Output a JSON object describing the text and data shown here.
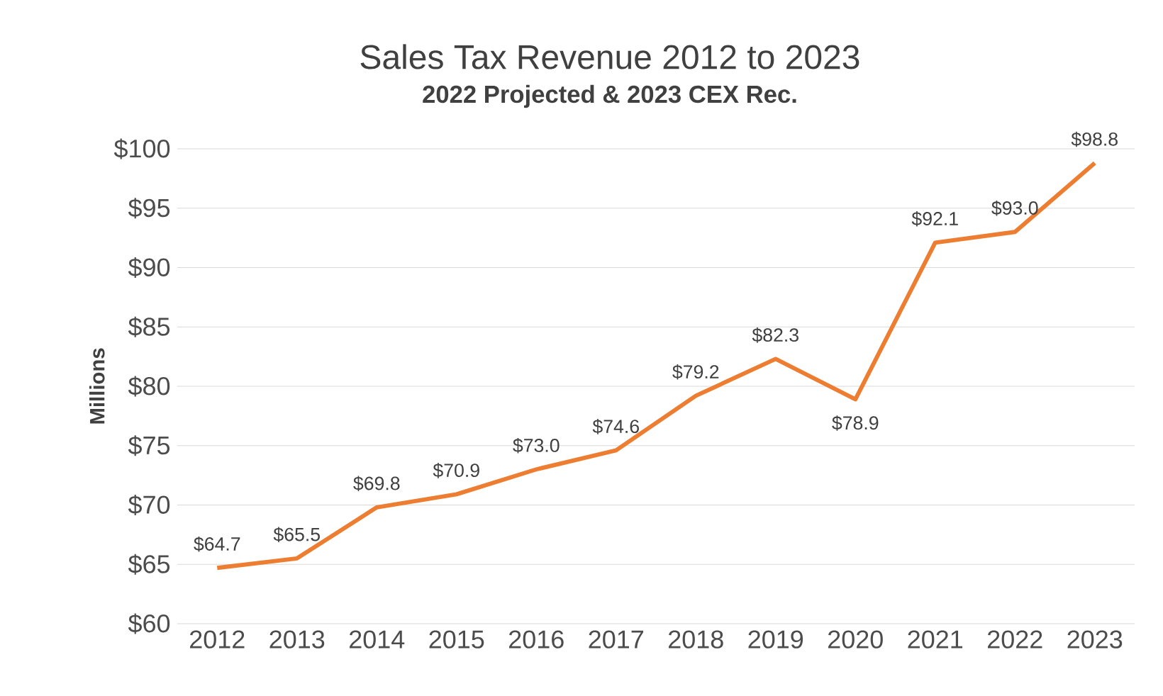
{
  "chart_data": {
    "type": "line",
    "title": "Sales Tax Revenue 2012 to 2023",
    "subtitle": "2022 Projected & 2023 CEX Rec.",
    "ylabel": "Millions",
    "categories": [
      "2012",
      "2013",
      "2014",
      "2015",
      "2016",
      "2017",
      "2018",
      "2019",
      "2020",
      "2021",
      "2022",
      "2023"
    ],
    "values": [
      64.7,
      65.5,
      69.8,
      70.9,
      73.0,
      74.6,
      79.2,
      82.3,
      78.9,
      92.1,
      93.0,
      98.8
    ],
    "value_labels": [
      "$64.7",
      "$65.5",
      "$69.8",
      "$70.9",
      "$73.0",
      "$74.6",
      "$79.2",
      "$82.3",
      "$78.9",
      "$92.1",
      "$93.0",
      "$98.8"
    ],
    "color": "#ed7d31",
    "ylim": [
      60,
      100
    ],
    "yticks": [
      {
        "value": 60,
        "label": "$60"
      },
      {
        "value": 65,
        "label": "$65"
      },
      {
        "value": 70,
        "label": "$70"
      },
      {
        "value": 75,
        "label": "$75"
      },
      {
        "value": 80,
        "label": "$80"
      },
      {
        "value": 85,
        "label": "$85"
      },
      {
        "value": 90,
        "label": "$90"
      },
      {
        "value": 95,
        "label": "$95"
      },
      {
        "value": 100,
        "label": "$100"
      }
    ],
    "grid": "y"
  }
}
